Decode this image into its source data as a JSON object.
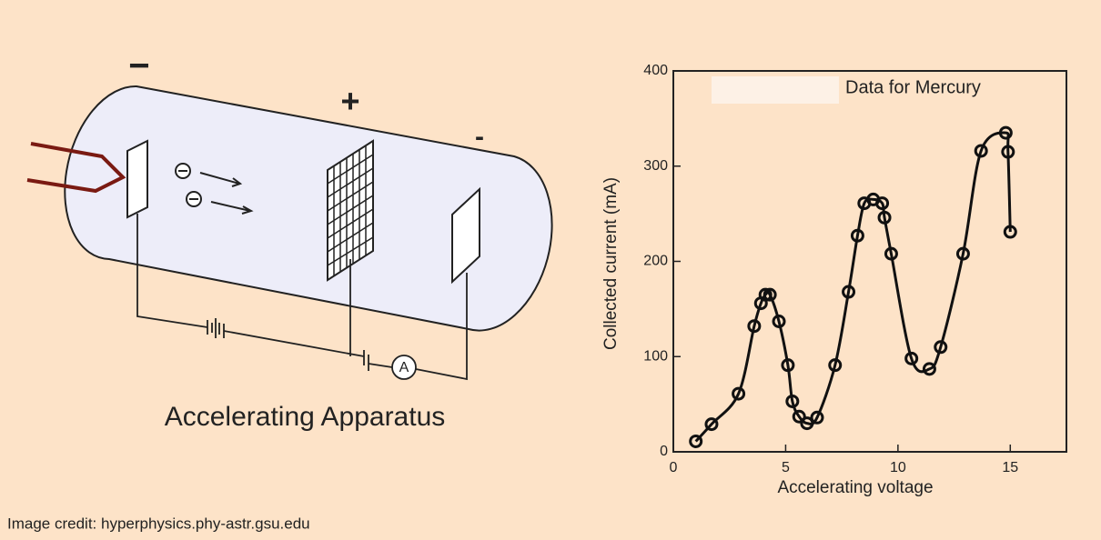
{
  "diagram": {
    "label": "Accelerating Apparatus",
    "signs": [
      "−",
      "+",
      "-"
    ],
    "ammeter": "A"
  },
  "credit": "Image credit: hyperphysics.phy-astr.gsu.edu",
  "chart_data": {
    "type": "line",
    "title": "Data for Mercury",
    "x_label": "Accelerating voltage",
    "y_label": "Collected current (mA)",
    "x": [
      1.0,
      1.7,
      2.9,
      3.6,
      3.9,
      4.1,
      4.3,
      4.7,
      5.1,
      5.3,
      5.6,
      5.95,
      6.4,
      7.2,
      7.8,
      8.2,
      8.5,
      8.9,
      9.3,
      9.4,
      9.7,
      10.6,
      11.4,
      11.9,
      12.9,
      13.7,
      14.8,
      14.9,
      15.0
    ],
    "values": [
      11,
      29,
      61,
      132,
      156,
      165,
      165,
      137,
      91,
      53,
      37,
      30,
      36,
      91,
      168,
      227,
      261,
      265,
      261,
      246,
      208,
      98,
      87,
      110,
      208,
      316,
      335,
      315,
      231
    ],
    "color": "#111111",
    "xlim": [
      0,
      17.5
    ],
    "xticks": [
      0,
      5,
      10,
      15
    ],
    "ylim": [
      0,
      400
    ],
    "yticks": [
      0,
      100,
      200,
      300,
      400
    ]
  }
}
